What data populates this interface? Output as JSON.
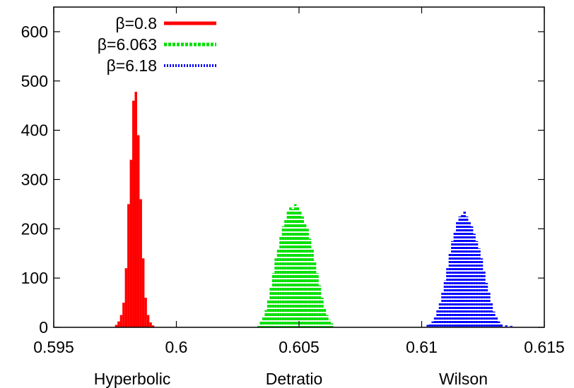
{
  "chart_data": {
    "type": "histogram",
    "xlim": [
      0.595,
      0.615
    ],
    "ylim": [
      0,
      650
    ],
    "x_ticks": [
      0.595,
      0.6,
      0.605,
      0.61,
      0.615
    ],
    "x_tick_labels": [
      "0.595",
      "0.6",
      "0.605",
      "0.61",
      "0.615"
    ],
    "y_ticks": [
      0,
      100,
      200,
      300,
      400,
      500,
      600
    ],
    "y_tick_labels": [
      "0",
      "100",
      "200",
      "300",
      "400",
      "500",
      "600"
    ],
    "category_labels": [
      {
        "text": "Hyperbolic",
        "x": 0.5982
      },
      {
        "text": "Detratio",
        "x": 0.6048
      },
      {
        "text": "Wilson",
        "x": 0.6117
      }
    ],
    "legend_position": "top-left",
    "grid": false,
    "bin_width": 0.0001,
    "series": [
      {
        "name": "β=0.8",
        "color": "#ff0000",
        "style": "solid",
        "bins": [
          [
            0.5975,
            5
          ],
          [
            0.5976,
            12
          ],
          [
            0.5977,
            25
          ],
          [
            0.5978,
            50
          ],
          [
            0.5979,
            120
          ],
          [
            0.598,
            250
          ],
          [
            0.5981,
            340
          ],
          [
            0.5982,
            460
          ],
          [
            0.5983,
            478
          ],
          [
            0.5984,
            390
          ],
          [
            0.5985,
            260
          ],
          [
            0.5986,
            140
          ],
          [
            0.5987,
            60
          ],
          [
            0.5988,
            25
          ],
          [
            0.5989,
            10
          ],
          [
            0.599,
            4
          ]
        ]
      },
      {
        "name": "β=6.063",
        "color": "#00e000",
        "style": "dashed",
        "bins": [
          [
            0.6033,
            5
          ],
          [
            0.6034,
            12
          ],
          [
            0.6035,
            20
          ],
          [
            0.6036,
            35
          ],
          [
            0.6037,
            55
          ],
          [
            0.6038,
            80
          ],
          [
            0.6039,
            110
          ],
          [
            0.604,
            140
          ],
          [
            0.6041,
            160
          ],
          [
            0.6042,
            185
          ],
          [
            0.6043,
            205
          ],
          [
            0.6044,
            220
          ],
          [
            0.6045,
            235
          ],
          [
            0.6046,
            245
          ],
          [
            0.6047,
            240
          ],
          [
            0.6048,
            250
          ],
          [
            0.6049,
            245
          ],
          [
            0.605,
            235
          ],
          [
            0.6051,
            225
          ],
          [
            0.6052,
            210
          ],
          [
            0.6053,
            200
          ],
          [
            0.6054,
            180
          ],
          [
            0.6055,
            160
          ],
          [
            0.6056,
            135
          ],
          [
            0.6057,
            110
          ],
          [
            0.6058,
            85
          ],
          [
            0.6059,
            60
          ],
          [
            0.606,
            40
          ],
          [
            0.6061,
            25
          ],
          [
            0.6062,
            15
          ],
          [
            0.6063,
            8
          ]
        ]
      },
      {
        "name": "β=6.18",
        "color": "#0000ff",
        "style": "dotted",
        "bins": [
          [
            0.6102,
            5
          ],
          [
            0.6103,
            8
          ],
          [
            0.6104,
            12
          ],
          [
            0.6105,
            20
          ],
          [
            0.6106,
            35
          ],
          [
            0.6107,
            50
          ],
          [
            0.6108,
            70
          ],
          [
            0.6109,
            95
          ],
          [
            0.611,
            120
          ],
          [
            0.6111,
            150
          ],
          [
            0.6112,
            175
          ],
          [
            0.6113,
            195
          ],
          [
            0.6114,
            215
          ],
          [
            0.6115,
            225
          ],
          [
            0.6116,
            230
          ],
          [
            0.6117,
            235
          ],
          [
            0.6118,
            225
          ],
          [
            0.6119,
            215
          ],
          [
            0.612,
            205
          ],
          [
            0.6121,
            190
          ],
          [
            0.6122,
            175
          ],
          [
            0.6123,
            160
          ],
          [
            0.6124,
            140
          ],
          [
            0.6125,
            115
          ],
          [
            0.6126,
            90
          ],
          [
            0.6127,
            70
          ],
          [
            0.6128,
            50
          ],
          [
            0.6129,
            32
          ],
          [
            0.613,
            20
          ],
          [
            0.6131,
            12
          ],
          [
            0.6132,
            6
          ],
          [
            0.6134,
            4
          ],
          [
            0.6136,
            3
          ]
        ]
      }
    ]
  }
}
